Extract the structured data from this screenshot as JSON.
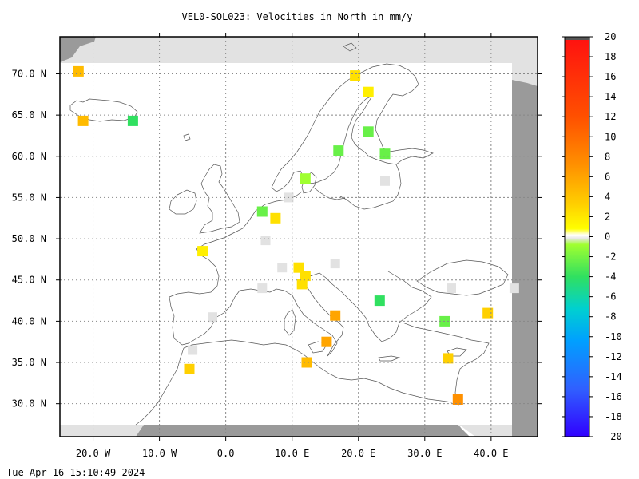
{
  "title": "VEL0-SOL023: Velocities in North in mm/y",
  "timestamp": "Tue Apr 16 15:10:49 2024",
  "map": {
    "lon_range": [
      -25,
      47
    ],
    "lat_range": [
      26,
      74.5
    ],
    "lon_ticks": [
      {
        "value": -20,
        "label": "20.0 W"
      },
      {
        "value": -10,
        "label": "10.0 W"
      },
      {
        "value": 0,
        "label": "0.0"
      },
      {
        "value": 10,
        "label": "10.0 E"
      },
      {
        "value": 20,
        "label": "20.0 E"
      },
      {
        "value": 30,
        "label": "30.0 E"
      },
      {
        "value": 40,
        "label": "40.0 E"
      }
    ],
    "lat_ticks": [
      {
        "value": 30,
        "label": "30.0 N"
      },
      {
        "value": 35,
        "label": "35.0 N"
      },
      {
        "value": 40,
        "label": "40.0 N"
      },
      {
        "value": 45,
        "label": "45.0 N"
      },
      {
        "value": 50,
        "label": "50.0 N"
      },
      {
        "value": 55,
        "label": "55.0 N"
      },
      {
        "value": 60,
        "label": "60.0 N"
      },
      {
        "value": 65,
        "label": "65.0 N"
      },
      {
        "value": 70,
        "label": "70.0 N"
      }
    ],
    "grid": true,
    "colors": {
      "no_data": "#9a9a9a",
      "outside_domain": "#e2e2e2",
      "coast": "#555555",
      "grid": "#888888"
    }
  },
  "colorbar": {
    "min": -20,
    "max": 20,
    "tick_values": [
      20,
      18,
      16,
      14,
      12,
      10,
      8,
      6,
      4,
      2,
      0,
      -2,
      -4,
      -6,
      -8,
      -10,
      -12,
      -14,
      -16,
      -18,
      -20
    ],
    "tick_labels": [
      "20",
      "18",
      "16",
      "14",
      "12",
      "10",
      "8",
      "6",
      "4",
      "2",
      "0",
      "-2",
      "-4",
      "-6",
      "-8",
      "-10",
      "-12",
      "-14",
      "-16",
      "-18",
      "-20"
    ]
  },
  "chart_data": {
    "type": "heatmap",
    "title": "VEL0-SOL023: Velocities in North in mm/y",
    "units": "mm/y",
    "points": [
      {
        "lon": -22.2,
        "lat": 70.3,
        "value": 5
      },
      {
        "lon": -21.5,
        "lat": 64.3,
        "value": 5
      },
      {
        "lon": -14.0,
        "lat": 64.3,
        "value": -3
      },
      {
        "lon": 19.5,
        "lat": 69.8,
        "value": 3
      },
      {
        "lon": 21.5,
        "lat": 67.8,
        "value": 2
      },
      {
        "lon": 17.0,
        "lat": 60.7,
        "value": -2
      },
      {
        "lon": 21.5,
        "lat": 63.0,
        "value": -2
      },
      {
        "lon": 24.0,
        "lat": 60.3,
        "value": -2
      },
      {
        "lon": 12.0,
        "lat": 57.3,
        "value": -1
      },
      {
        "lon": 5.5,
        "lat": 53.3,
        "value": -2
      },
      {
        "lon": 7.5,
        "lat": 52.5,
        "value": 3
      },
      {
        "lon": -3.5,
        "lat": 48.5,
        "value": 2
      },
      {
        "lon": 11.0,
        "lat": 46.5,
        "value": 3
      },
      {
        "lon": 12.0,
        "lat": 45.5,
        "value": 3
      },
      {
        "lon": 11.5,
        "lat": 44.5,
        "value": 3
      },
      {
        "lon": 16.5,
        "lat": 40.7,
        "value": 6
      },
      {
        "lon": 15.2,
        "lat": 37.5,
        "value": 6
      },
      {
        "lon": 12.2,
        "lat": 35.0,
        "value": 5
      },
      {
        "lon": -5.5,
        "lat": 34.2,
        "value": 4
      },
      {
        "lon": 23.2,
        "lat": 42.5,
        "value": -3
      },
      {
        "lon": 33.0,
        "lat": 40.0,
        "value": -2
      },
      {
        "lon": 39.5,
        "lat": 41.0,
        "value": 4
      },
      {
        "lon": 33.5,
        "lat": 35.5,
        "value": 4
      },
      {
        "lon": 35.0,
        "lat": 30.5,
        "value": 7
      }
    ],
    "no_data_cells": [
      {
        "lon": 6.0,
        "lat": 49.8
      },
      {
        "lon": 8.5,
        "lat": 46.5
      },
      {
        "lon": 16.5,
        "lat": 47.0
      },
      {
        "lon": 24.0,
        "lat": 57.0
      },
      {
        "lon": -2.0,
        "lat": 40.5
      },
      {
        "lon": -5.0,
        "lat": 36.5
      },
      {
        "lon": 34.0,
        "lat": 44.0
      },
      {
        "lon": 43.5,
        "lat": 44.0
      },
      {
        "lon": 5.5,
        "lat": 44.0
      },
      {
        "lon": 9.5,
        "lat": 55.0
      }
    ]
  }
}
